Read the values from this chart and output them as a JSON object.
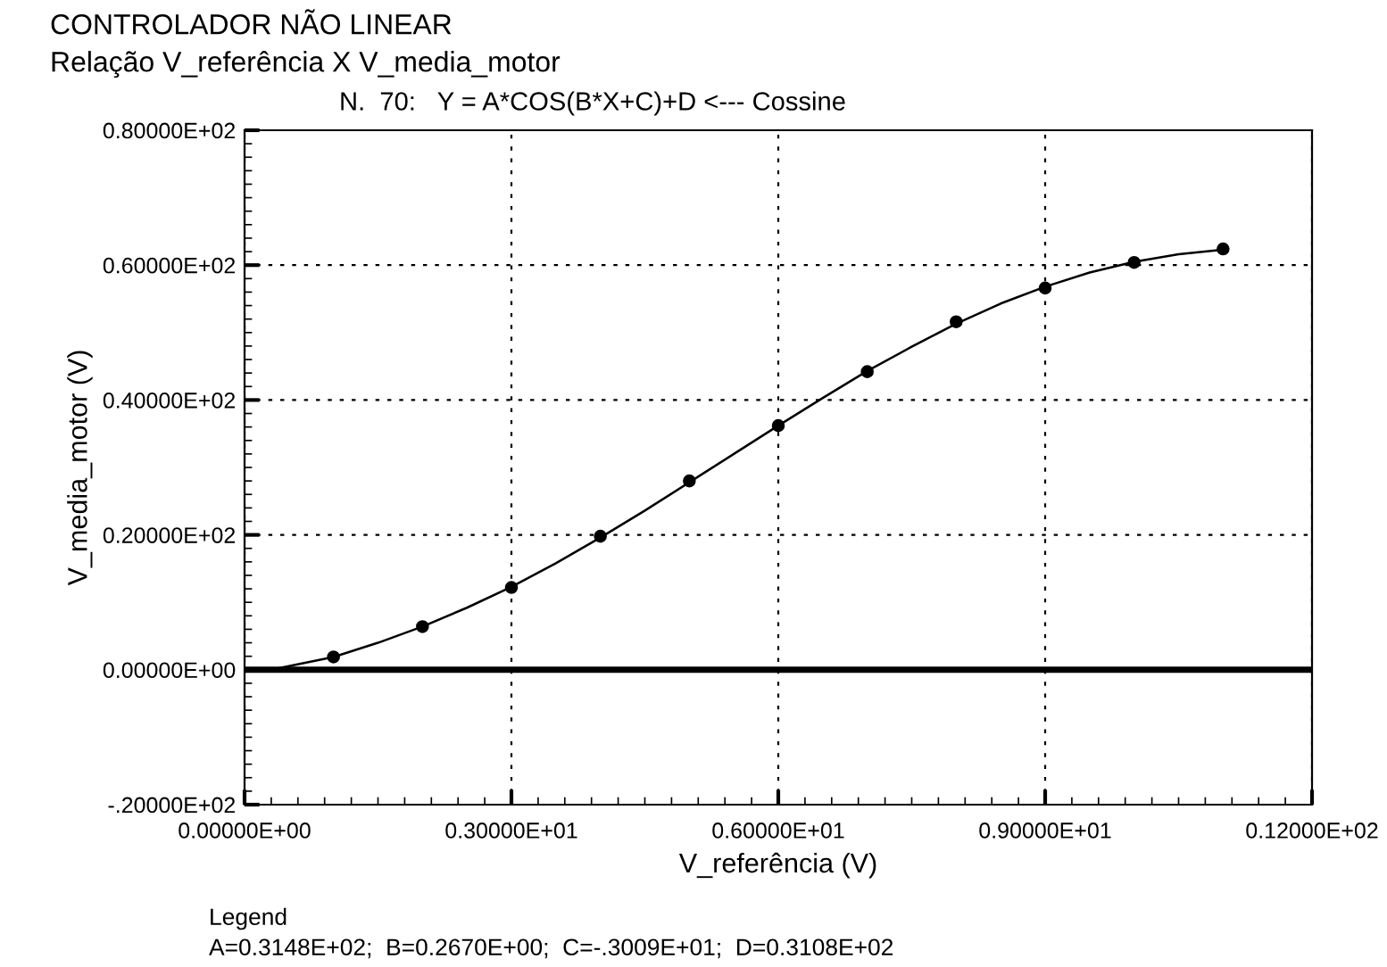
{
  "chart_data": {
    "type": "scatter",
    "title": "CONTROLADOR NÃO LINEAR",
    "subtitle": "Relação V_referência X V_media_motor",
    "annotations": [
      "N.  70:   Y = A*COS(B*X+C)+D <--- Cossine",
      "Legend",
      "A=0.3148E+02;  B=0.2670E+00;  C=-.3009E+01;  D=0.3108E+02"
    ],
    "xlabel": "V_referência (V)",
    "ylabel": "V_media_motor (V)",
    "series": [
      {
        "color": "#000000",
        "marker": "circle",
        "x": [
          1,
          2,
          3,
          4,
          5,
          6,
          7,
          8,
          9,
          10,
          11
        ],
        "values": [
          1.9,
          6.4,
          12.2,
          19.8,
          28.0,
          36.2,
          44.2,
          51.6,
          56.6,
          60.4,
          62.4
        ]
      },
      {
        "type": "line",
        "color": "#000000",
        "line_style": "solid",
        "x": [
          0.3,
          1,
          1.5,
          2,
          2.5,
          3,
          3.5,
          4,
          4.5,
          5,
          5.5,
          6,
          6.5,
          7,
          7.5,
          8,
          8.5,
          9,
          9.5,
          10,
          10.5,
          11
        ],
        "values": [
          0,
          1.9,
          4.0,
          6.4,
          9.2,
          12.3,
          15.8,
          19.6,
          23.6,
          27.8,
          32.0,
          36.2,
          40.3,
          44.3,
          47.9,
          51.3,
          54.3,
          56.8,
          58.9,
          60.5,
          61.6,
          62.3
        ]
      }
    ],
    "xlim": [
      0,
      12
    ],
    "xticks": [
      {
        "value": 0,
        "label": "0.00000E+00"
      },
      {
        "value": 3,
        "label": "0.30000E+01"
      },
      {
        "value": 6,
        "label": "0.60000E+01"
      },
      {
        "value": 9,
        "label": "0.90000E+01"
      },
      {
        "value": 12,
        "label": "0.12000E+02"
      }
    ],
    "ylim": [
      -20,
      80
    ],
    "yticks": [
      {
        "value": -20,
        "label": "-.20000E+02"
      },
      {
        "value": 0,
        "label": "0.00000E+00"
      },
      {
        "value": 20,
        "label": "0.20000E+02"
      },
      {
        "value": 40,
        "label": "0.40000E+02"
      },
      {
        "value": 60,
        "label": "0.60000E+02"
      },
      {
        "value": 80,
        "label": "0.80000E+02"
      }
    ],
    "ref_lines": [
      {
        "axis": "y",
        "value": 0,
        "color": "#000000",
        "line_style": "solid"
      }
    ],
    "grid": true
  }
}
